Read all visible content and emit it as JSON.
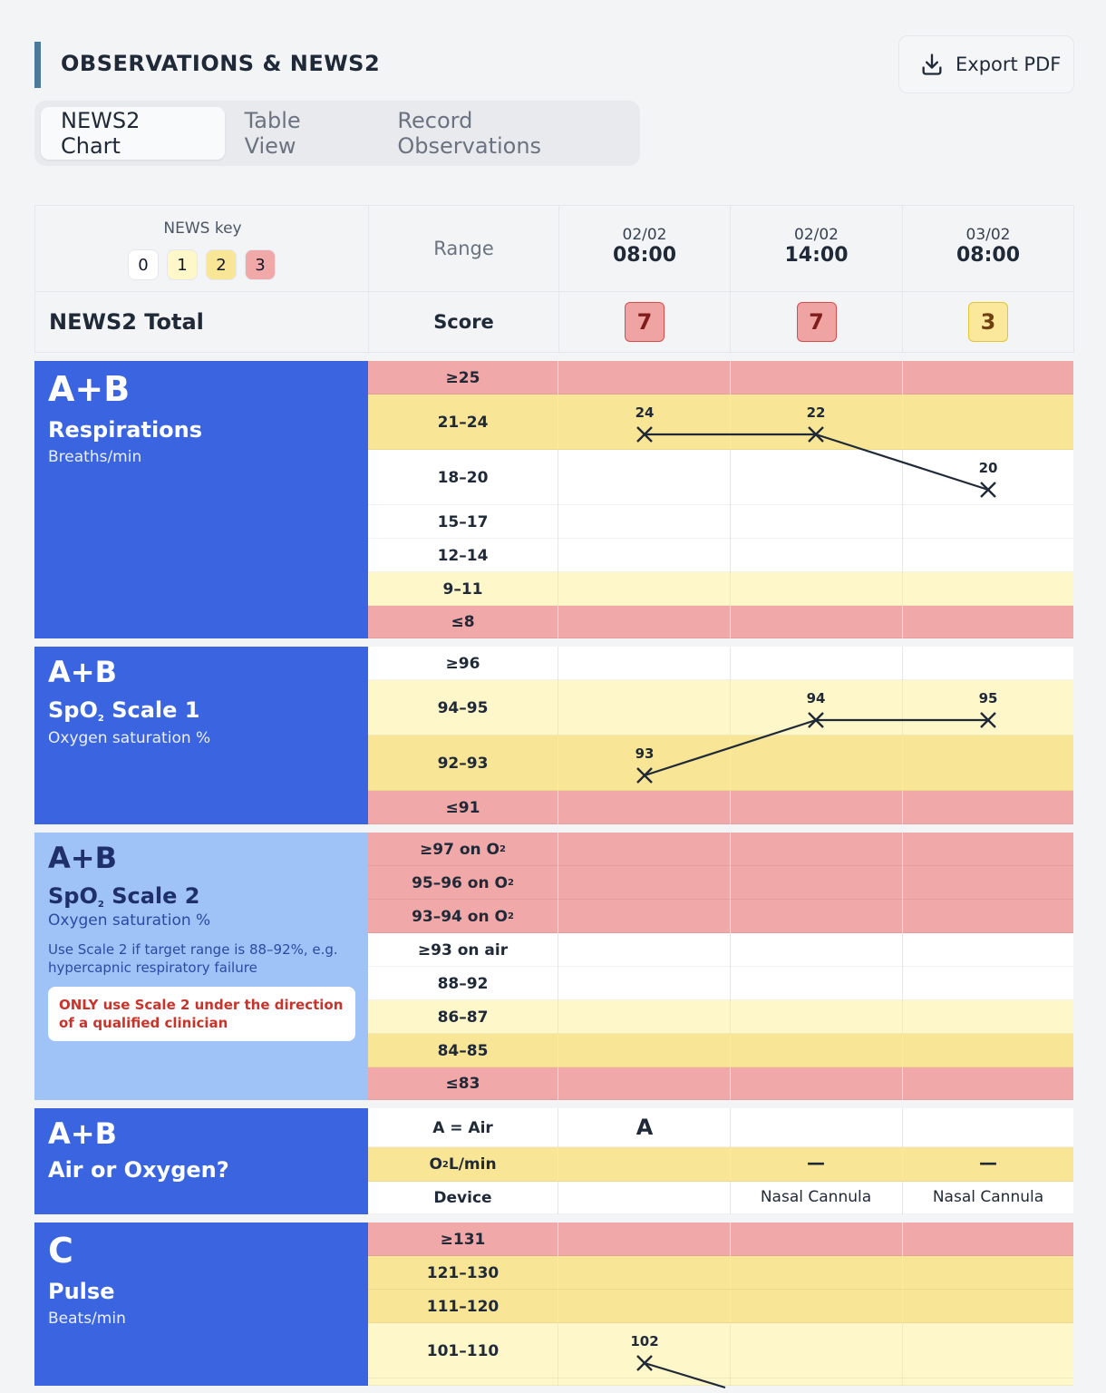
{
  "header": {
    "title": "OBSERVATIONS & NEWS2",
    "export_label": "Export PDF",
    "export_icon": "download-icon"
  },
  "tabs": [
    {
      "label": "NEWS2 Chart",
      "active": true
    },
    {
      "label": "Table View",
      "active": false
    },
    {
      "label": "Record Observations",
      "active": false
    }
  ],
  "table_head": {
    "news_key_label": "NEWS key",
    "news_key": [
      "0",
      "1",
      "2",
      "3"
    ],
    "range_label": "Range",
    "columns": [
      {
        "date": "02/02",
        "time": "08:00"
      },
      {
        "date": "02/02",
        "time": "14:00"
      },
      {
        "date": "03/02",
        "time": "08:00"
      }
    ]
  },
  "totals": {
    "label": "NEWS2 Total",
    "score_label": "Score",
    "scores": [
      "7",
      "7",
      "3"
    ]
  },
  "respirations": {
    "code": "A+B",
    "name": "Respirations",
    "unit": "Breaths/min",
    "ranges": [
      "≥25",
      "21–24",
      "18–20",
      "15–17",
      "12–14",
      "9–11",
      "≤8"
    ],
    "values": [
      "24",
      "22",
      "20"
    ]
  },
  "spo2_scale1": {
    "code": "A+B",
    "name_main": "SpO",
    "name_sub": "2",
    "name_rest": " Scale 1",
    "unit": "Oxygen saturation %",
    "ranges": [
      "≥96",
      "94–95",
      "92–93",
      "≤91"
    ],
    "values": [
      "93",
      "94",
      "95"
    ]
  },
  "spo2_scale2": {
    "code": "A+B",
    "name_main": "SpO",
    "name_sub": "2",
    "name_rest": " Scale 2",
    "unit": "Oxygen saturation %",
    "note": "Use Scale 2 if target range is 88–92%, e.g. hypercapnic respiratory failure",
    "warning": "ONLY use Scale 2 under the direction of a qualified clinician",
    "ranges": [
      {
        "main": "≥97 on O",
        "sub": "2"
      },
      {
        "main": "95–96 on O",
        "sub": "2"
      },
      {
        "main": "93–94 on O",
        "sub": "2"
      },
      {
        "main": "≥93 on air",
        "sub": ""
      },
      {
        "main": "88–92",
        "sub": ""
      },
      {
        "main": "86–87",
        "sub": ""
      },
      {
        "main": "84–85",
        "sub": ""
      },
      {
        "main": "≤83",
        "sub": ""
      }
    ]
  },
  "air_oxygen": {
    "code": "A+B",
    "name": "Air or Oxygen?",
    "rows": [
      {
        "main": "A = Air",
        "sub": "",
        "rest": ""
      },
      {
        "main": "O",
        "sub": "2",
        "rest": " L/min"
      },
      {
        "main": "Device",
        "sub": "",
        "rest": ""
      }
    ],
    "air": [
      "A",
      "",
      ""
    ],
    "o2": [
      "",
      "—",
      "—"
    ],
    "device": [
      "",
      "Nasal Cannula",
      "Nasal Cannula"
    ]
  },
  "pulse": {
    "code": "C",
    "name": "Pulse",
    "unit": "Beats/min",
    "ranges": [
      "≥131",
      "121–130",
      "111–120",
      "101–110"
    ],
    "values": [
      "102"
    ]
  },
  "colors": {
    "score0": "#ffffff",
    "score1": "#fef7c9",
    "score2": "#f8e696",
    "score3": "#f0a8a8",
    "section_blue": "#3a64e0",
    "section_light_blue": "#9fc2f7"
  }
}
